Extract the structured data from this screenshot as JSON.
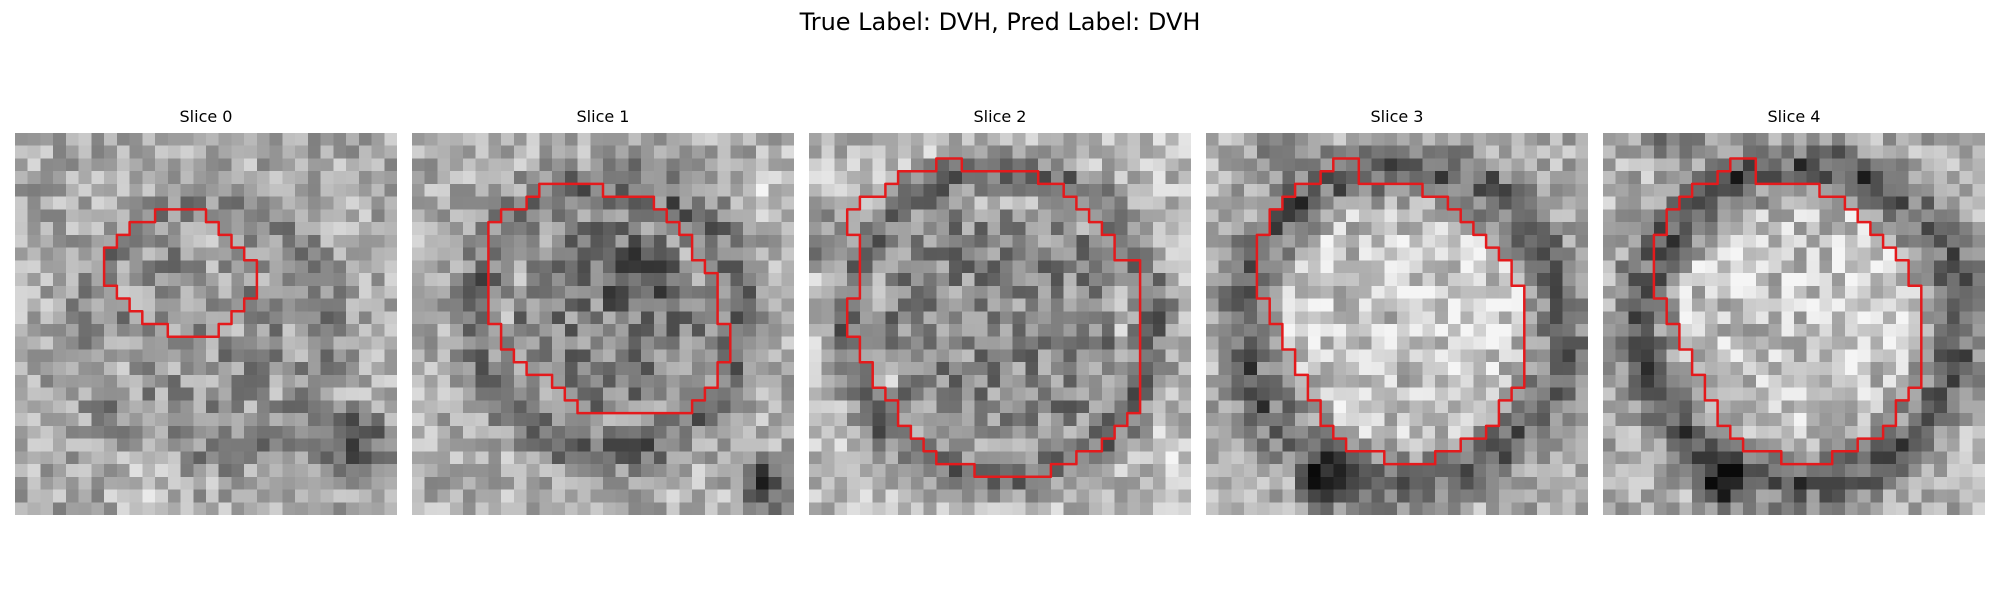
{
  "figure": {
    "suptitle": "True Label: DVH, Pred Label: DVH"
  },
  "slices": [
    {
      "title": "Slice 0"
    },
    {
      "title": "Slice 1"
    },
    {
      "title": "Slice 2"
    },
    {
      "title": "Slice 3"
    },
    {
      "title": "Slice 4"
    }
  ],
  "contour_color": "#e41a1c"
}
